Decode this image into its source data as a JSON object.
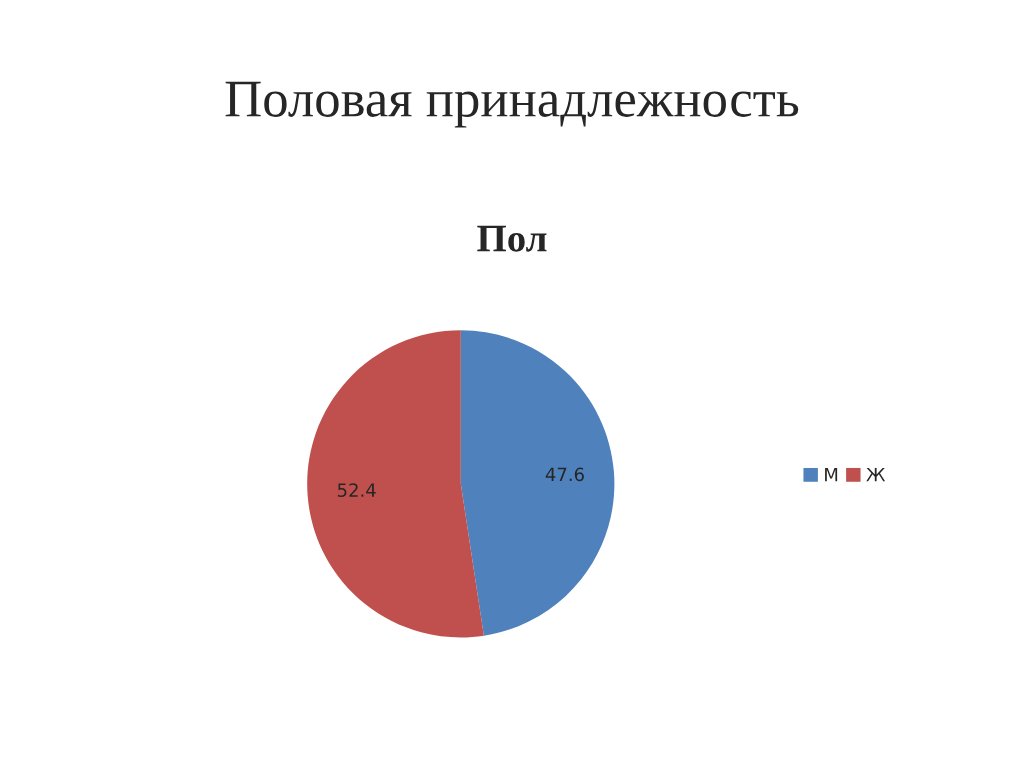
{
  "chart_data": {
    "type": "pie",
    "title": "Половая принадлежность",
    "subtitle": "Пол",
    "categories": [
      "М",
      "Ж"
    ],
    "values": [
      47.6,
      52.4
    ],
    "colors": [
      "#4f81bd",
      "#c0504d"
    ],
    "data_labels": true,
    "legend": "right"
  }
}
